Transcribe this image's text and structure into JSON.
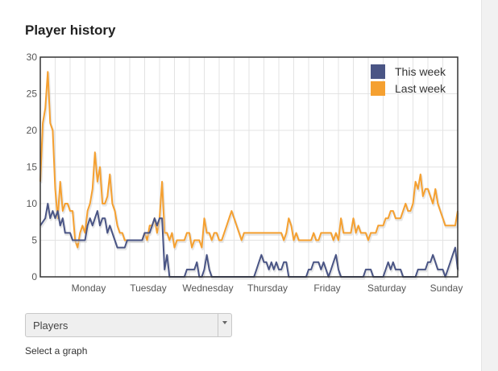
{
  "page": {
    "title": "Player history"
  },
  "graph_select": {
    "selected": "Players",
    "hint": "Select a graph"
  },
  "chart_data": {
    "type": "line",
    "title": "Player history",
    "xlabel": "",
    "ylabel": "",
    "ylim": [
      0,
      30
    ],
    "yticks": [
      0,
      5,
      10,
      15,
      20,
      25,
      30
    ],
    "xlim": [
      0,
      168
    ],
    "x_tick_labels": [
      {
        "label": "Monday",
        "x": 24
      },
      {
        "label": "Tuesday",
        "x": 48
      },
      {
        "label": "Wednesday",
        "x": 72
      },
      {
        "label": "Thursday",
        "x": 96
      },
      {
        "label": "Friday",
        "x": 120
      },
      {
        "label": "Saturday",
        "x": 144
      },
      {
        "label": "Sunday",
        "x": 168
      }
    ],
    "grid": true,
    "legend_position": "top-right",
    "series": [
      {
        "name": "This week",
        "color": "#4a5585",
        "points": [
          [
            0,
            7
          ],
          [
            2,
            8
          ],
          [
            3,
            10
          ],
          [
            4,
            8
          ],
          [
            5,
            9
          ],
          [
            6,
            8
          ],
          [
            7,
            9
          ],
          [
            8,
            7
          ],
          [
            9,
            8
          ],
          [
            10,
            6
          ],
          [
            11,
            6
          ],
          [
            12,
            6
          ],
          [
            13,
            5
          ],
          [
            14,
            5
          ],
          [
            15,
            5
          ],
          [
            16,
            5
          ],
          [
            17,
            5
          ],
          [
            18,
            5
          ],
          [
            19,
            7
          ],
          [
            20,
            8
          ],
          [
            21,
            7
          ],
          [
            22,
            8
          ],
          [
            23,
            9
          ],
          [
            24,
            7
          ],
          [
            25,
            8
          ],
          [
            26,
            8
          ],
          [
            27,
            6
          ],
          [
            28,
            7
          ],
          [
            29,
            6
          ],
          [
            30,
            5
          ],
          [
            31,
            4
          ],
          [
            32,
            4
          ],
          [
            33,
            4
          ],
          [
            34,
            4
          ],
          [
            35,
            5
          ],
          [
            36,
            5
          ],
          [
            37,
            5
          ],
          [
            38,
            5
          ],
          [
            39,
            5
          ],
          [
            40,
            5
          ],
          [
            41,
            5
          ],
          [
            42,
            6
          ],
          [
            43,
            6
          ],
          [
            44,
            6
          ],
          [
            45,
            7
          ],
          [
            46,
            8
          ],
          [
            47,
            7
          ],
          [
            48,
            8
          ],
          [
            49,
            8
          ],
          [
            50,
            1
          ],
          [
            51,
            3
          ],
          [
            52,
            0
          ],
          [
            53,
            0
          ],
          [
            54,
            0
          ],
          [
            55,
            0
          ],
          [
            56,
            0
          ],
          [
            57,
            0
          ],
          [
            58,
            0
          ],
          [
            59,
            1
          ],
          [
            60,
            1
          ],
          [
            61,
            1
          ],
          [
            62,
            1
          ],
          [
            63,
            2
          ],
          [
            64,
            0
          ],
          [
            65,
            0
          ],
          [
            66,
            1
          ],
          [
            67,
            3
          ],
          [
            68,
            1
          ],
          [
            69,
            0
          ],
          [
            70,
            0
          ],
          [
            71,
            0
          ],
          [
            72,
            0
          ],
          [
            73,
            0
          ],
          [
            74,
            0
          ],
          [
            75,
            0
          ],
          [
            76,
            0
          ],
          [
            77,
            0
          ],
          [
            78,
            0
          ],
          [
            79,
            0
          ],
          [
            80,
            0
          ],
          [
            81,
            0
          ],
          [
            82,
            0
          ],
          [
            83,
            0
          ],
          [
            84,
            0
          ],
          [
            85,
            0
          ],
          [
            86,
            0
          ],
          [
            87,
            1
          ],
          [
            88,
            2
          ],
          [
            89,
            3
          ],
          [
            90,
            2
          ],
          [
            91,
            2
          ],
          [
            92,
            1
          ],
          [
            93,
            2
          ],
          [
            94,
            1
          ],
          [
            95,
            2
          ],
          [
            96,
            1
          ],
          [
            97,
            1
          ],
          [
            98,
            2
          ],
          [
            99,
            2
          ],
          [
            100,
            0
          ],
          [
            101,
            0
          ],
          [
            102,
            0
          ],
          [
            103,
            0
          ],
          [
            104,
            0
          ],
          [
            105,
            0
          ],
          [
            106,
            0
          ],
          [
            107,
            0
          ],
          [
            108,
            1
          ],
          [
            109,
            1
          ],
          [
            110,
            2
          ],
          [
            111,
            2
          ],
          [
            112,
            2
          ],
          [
            113,
            1
          ],
          [
            114,
            2
          ],
          [
            115,
            1
          ],
          [
            116,
            0
          ],
          [
            117,
            1
          ],
          [
            118,
            2
          ],
          [
            119,
            3
          ],
          [
            120,
            1
          ],
          [
            121,
            0
          ],
          [
            122,
            0
          ],
          [
            123,
            0
          ],
          [
            124,
            0
          ],
          [
            125,
            0
          ],
          [
            126,
            0
          ],
          [
            127,
            0
          ],
          [
            128,
            0
          ],
          [
            129,
            0
          ],
          [
            130,
            0
          ],
          [
            131,
            1
          ],
          [
            132,
            1
          ],
          [
            133,
            1
          ],
          [
            134,
            0
          ],
          [
            135,
            0
          ],
          [
            136,
            0
          ],
          [
            137,
            0
          ],
          [
            138,
            0
          ],
          [
            139,
            1
          ],
          [
            140,
            2
          ],
          [
            141,
            1
          ],
          [
            142,
            2
          ],
          [
            143,
            1
          ],
          [
            144,
            1
          ],
          [
            145,
            1
          ],
          [
            146,
            0
          ],
          [
            147,
            0
          ],
          [
            148,
            0
          ],
          [
            149,
            0
          ],
          [
            150,
            0
          ],
          [
            151,
            0
          ],
          [
            152,
            1
          ],
          [
            153,
            1
          ],
          [
            154,
            1
          ],
          [
            155,
            1
          ],
          [
            156,
            2
          ],
          [
            157,
            2
          ],
          [
            158,
            3
          ],
          [
            159,
            2
          ],
          [
            160,
            1
          ],
          [
            161,
            1
          ],
          [
            162,
            1
          ],
          [
            163,
            0
          ],
          [
            164,
            1
          ],
          [
            165,
            2
          ],
          [
            166,
            3
          ],
          [
            167,
            4
          ],
          [
            168,
            1
          ]
        ]
      },
      {
        "name": "Last week",
        "color": "#f5a030",
        "points": [
          [
            0,
            13
          ],
          [
            1,
            21
          ],
          [
            2,
            23
          ],
          [
            3,
            28
          ],
          [
            4,
            21
          ],
          [
            5,
            20
          ],
          [
            6,
            12
          ],
          [
            7,
            8
          ],
          [
            8,
            13
          ],
          [
            9,
            9
          ],
          [
            10,
            10
          ],
          [
            11,
            10
          ],
          [
            12,
            9
          ],
          [
            13,
            9
          ],
          [
            14,
            5
          ],
          [
            15,
            4
          ],
          [
            16,
            6
          ],
          [
            17,
            7
          ],
          [
            18,
            6
          ],
          [
            19,
            9
          ],
          [
            20,
            10
          ],
          [
            21,
            12
          ],
          [
            22,
            17
          ],
          [
            23,
            13
          ],
          [
            24,
            15
          ],
          [
            25,
            10
          ],
          [
            26,
            10
          ],
          [
            27,
            11
          ],
          [
            28,
            14
          ],
          [
            29,
            10
          ],
          [
            30,
            9
          ],
          [
            31,
            7
          ],
          [
            32,
            6
          ],
          [
            33,
            6
          ],
          [
            34,
            5
          ],
          [
            35,
            5
          ],
          [
            36,
            5
          ],
          [
            37,
            5
          ],
          [
            38,
            5
          ],
          [
            39,
            5
          ],
          [
            40,
            5
          ],
          [
            41,
            5
          ],
          [
            42,
            6
          ],
          [
            43,
            5
          ],
          [
            44,
            7
          ],
          [
            45,
            7
          ],
          [
            46,
            8
          ],
          [
            47,
            6
          ],
          [
            48,
            8
          ],
          [
            49,
            13
          ],
          [
            50,
            6
          ],
          [
            51,
            6
          ],
          [
            52,
            5
          ],
          [
            53,
            6
          ],
          [
            54,
            4
          ],
          [
            55,
            5
          ],
          [
            56,
            5
          ],
          [
            57,
            5
          ],
          [
            58,
            5
          ],
          [
            59,
            6
          ],
          [
            60,
            6
          ],
          [
            61,
            4
          ],
          [
            62,
            5
          ],
          [
            63,
            5
          ],
          [
            64,
            5
          ],
          [
            65,
            4
          ],
          [
            66,
            8
          ],
          [
            67,
            6
          ],
          [
            68,
            6
          ],
          [
            69,
            5
          ],
          [
            70,
            6
          ],
          [
            71,
            6
          ],
          [
            72,
            5
          ],
          [
            73,
            5
          ],
          [
            74,
            6
          ],
          [
            75,
            7
          ],
          [
            76,
            8
          ],
          [
            77,
            9
          ],
          [
            78,
            8
          ],
          [
            79,
            7
          ],
          [
            80,
            6
          ],
          [
            81,
            5
          ],
          [
            82,
            6
          ],
          [
            83,
            6
          ],
          [
            84,
            6
          ],
          [
            85,
            6
          ],
          [
            86,
            6
          ],
          [
            87,
            6
          ],
          [
            88,
            6
          ],
          [
            89,
            6
          ],
          [
            90,
            6
          ],
          [
            91,
            6
          ],
          [
            92,
            6
          ],
          [
            93,
            6
          ],
          [
            94,
            6
          ],
          [
            95,
            6
          ],
          [
            96,
            6
          ],
          [
            97,
            6
          ],
          [
            98,
            5
          ],
          [
            99,
            6
          ],
          [
            100,
            8
          ],
          [
            101,
            7
          ],
          [
            102,
            5
          ],
          [
            103,
            6
          ],
          [
            104,
            5
          ],
          [
            105,
            5
          ],
          [
            106,
            5
          ],
          [
            107,
            5
          ],
          [
            108,
            5
          ],
          [
            109,
            5
          ],
          [
            110,
            6
          ],
          [
            111,
            5
          ],
          [
            112,
            5
          ],
          [
            113,
            6
          ],
          [
            114,
            6
          ],
          [
            115,
            6
          ],
          [
            116,
            6
          ],
          [
            117,
            6
          ],
          [
            118,
            5
          ],
          [
            119,
            6
          ],
          [
            120,
            5
          ],
          [
            121,
            8
          ],
          [
            122,
            6
          ],
          [
            123,
            6
          ],
          [
            124,
            6
          ],
          [
            125,
            6
          ],
          [
            126,
            8
          ],
          [
            127,
            6
          ],
          [
            128,
            7
          ],
          [
            129,
            6
          ],
          [
            130,
            6
          ],
          [
            131,
            6
          ],
          [
            132,
            5
          ],
          [
            133,
            6
          ],
          [
            134,
            6
          ],
          [
            135,
            6
          ],
          [
            136,
            7
          ],
          [
            137,
            7
          ],
          [
            138,
            7
          ],
          [
            139,
            8
          ],
          [
            140,
            8
          ],
          [
            141,
            9
          ],
          [
            142,
            9
          ],
          [
            143,
            8
          ],
          [
            144,
            8
          ],
          [
            145,
            8
          ],
          [
            146,
            9
          ],
          [
            147,
            10
          ],
          [
            148,
            9
          ],
          [
            149,
            9
          ],
          [
            150,
            10
          ],
          [
            151,
            13
          ],
          [
            152,
            12
          ],
          [
            153,
            14
          ],
          [
            154,
            11
          ],
          [
            155,
            12
          ],
          [
            156,
            12
          ],
          [
            157,
            11
          ],
          [
            158,
            10
          ],
          [
            159,
            12
          ],
          [
            160,
            10
          ],
          [
            161,
            9
          ],
          [
            162,
            8
          ],
          [
            163,
            7
          ],
          [
            164,
            7
          ],
          [
            165,
            7
          ],
          [
            166,
            7
          ],
          [
            167,
            7
          ],
          [
            168,
            9
          ]
        ]
      }
    ]
  }
}
